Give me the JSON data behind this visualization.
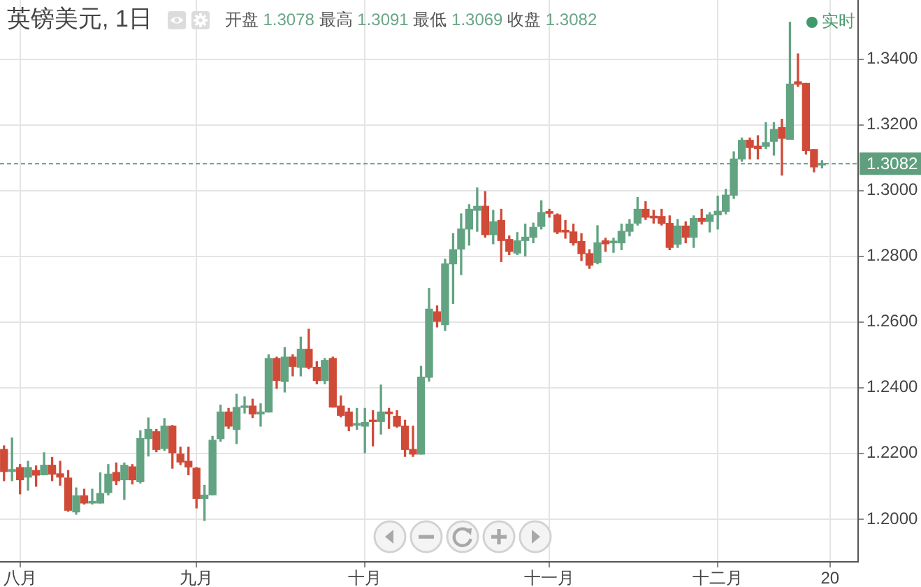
{
  "chart_data": {
    "type": "candlestick",
    "title": "英镑美元, 1日",
    "subtitle": "开盘 1.3078 最高 1.3091 最低 1.3069 收盘 1.3082",
    "annotations": [
      "实时"
    ],
    "categories": [
      null,
      null,
      "八月",
      null,
      null,
      null,
      null,
      null,
      null,
      null,
      null,
      null,
      null,
      null,
      null,
      null,
      null,
      null,
      null,
      null,
      null,
      null,
      null,
      null,
      "九月",
      null,
      null,
      null,
      null,
      null,
      null,
      null,
      null,
      null,
      null,
      null,
      null,
      null,
      null,
      null,
      null,
      null,
      null,
      null,
      null,
      "十月",
      null,
      null,
      null,
      null,
      null,
      null,
      null,
      null,
      null,
      null,
      null,
      null,
      null,
      null,
      null,
      null,
      null,
      null,
      null,
      null,
      null,
      null,
      "十一月",
      null,
      null,
      null,
      null,
      null,
      null,
      null,
      null,
      null,
      null,
      null,
      null,
      null,
      null,
      null,
      null,
      null,
      null,
      null,
      null,
      "十二月",
      null,
      null,
      null,
      null,
      null,
      null,
      null,
      null,
      null,
      null,
      null,
      null,
      null,
      "20"
    ],
    "ohlc": [
      [
        1.2212,
        1.2223,
        1.2117,
        1.2145
      ],
      [
        1.2145,
        1.2247,
        1.2117,
        1.2151
      ],
      [
        1.2157,
        1.2166,
        1.2077,
        1.212
      ],
      [
        1.2128,
        1.2176,
        1.2088,
        1.2157
      ],
      [
        1.2148,
        1.2162,
        1.21,
        1.2134
      ],
      [
        1.2135,
        1.2202,
        1.2135,
        1.2164
      ],
      [
        1.2164,
        1.2188,
        1.2117,
        1.2137
      ],
      [
        1.2138,
        1.2176,
        1.2103,
        1.2128
      ],
      [
        1.2125,
        1.2148,
        1.2024,
        1.2027
      ],
      [
        1.2022,
        1.2095,
        1.2015,
        1.2071
      ],
      [
        1.2071,
        1.2091,
        1.2046,
        1.2049
      ],
      [
        1.2049,
        1.2091,
        1.2046,
        1.2054
      ],
      [
        1.2049,
        1.2141,
        1.2049,
        1.2078
      ],
      [
        1.2081,
        1.2166,
        1.2074,
        1.2137
      ],
      [
        1.2142,
        1.2171,
        1.2105,
        1.2117
      ],
      [
        1.212,
        1.2171,
        1.206,
        1.2164
      ],
      [
        1.2159,
        1.2166,
        1.2107,
        1.212
      ],
      [
        1.2114,
        1.2269,
        1.211,
        1.2245
      ],
      [
        1.2245,
        1.2308,
        1.2192,
        1.2273
      ],
      [
        1.2266,
        1.2273,
        1.2205,
        1.2212
      ],
      [
        1.2215,
        1.2306,
        1.2209,
        1.2283
      ],
      [
        1.2283,
        1.2285,
        1.2155,
        1.2202
      ],
      [
        1.2198,
        1.2219,
        1.2166,
        1.2174
      ],
      [
        1.2176,
        1.2219,
        1.2135,
        1.2159
      ],
      [
        1.2155,
        1.2157,
        1.2034,
        1.2063
      ],
      [
        1.2063,
        1.2103,
        1.1996,
        1.2073
      ],
      [
        1.2074,
        1.2252,
        1.2074,
        1.224
      ],
      [
        1.2245,
        1.2347,
        1.2237,
        1.2326
      ],
      [
        1.2326,
        1.2337,
        1.2276,
        1.2283
      ],
      [
        1.2273,
        1.238,
        1.223,
        1.234
      ],
      [
        1.234,
        1.2372,
        1.2323,
        1.2344
      ],
      [
        1.2344,
        1.2365,
        1.2309,
        1.232
      ],
      [
        1.232,
        1.2351,
        1.2283,
        1.2326
      ],
      [
        1.2326,
        1.25,
        1.2326,
        1.2489
      ],
      [
        1.2489,
        1.2493,
        1.2398,
        1.2422
      ],
      [
        1.2419,
        1.2522,
        1.2387,
        1.2493
      ],
      [
        1.2493,
        1.25,
        1.2436,
        1.2465
      ],
      [
        1.2462,
        1.2554,
        1.2436,
        1.2517
      ],
      [
        1.2517,
        1.2578,
        1.2458,
        1.2462
      ],
      [
        1.2462,
        1.2479,
        1.2412,
        1.2422
      ],
      [
        1.2422,
        1.2489,
        1.2412,
        1.2483
      ],
      [
        1.2489,
        1.2493,
        1.2341,
        1.2341
      ],
      [
        1.2344,
        1.2375,
        1.2311,
        1.2316
      ],
      [
        1.2326,
        1.2337,
        1.2269,
        1.2283
      ],
      [
        1.2286,
        1.2337,
        1.2273,
        1.2291
      ],
      [
        1.2283,
        1.2337,
        1.2202,
        1.2294
      ],
      [
        1.2301,
        1.233,
        1.2223,
        1.2297
      ],
      [
        1.2297,
        1.2408,
        1.2259,
        1.2326
      ],
      [
        1.2326,
        1.2337,
        1.2276,
        1.2321
      ],
      [
        1.2313,
        1.233,
        1.228,
        1.2283
      ],
      [
        1.2283,
        1.2301,
        1.2191,
        1.2212
      ],
      [
        1.2212,
        1.2283,
        1.2191,
        1.2198
      ],
      [
        1.2198,
        1.2465,
        1.2198,
        1.2432
      ],
      [
        1.2432,
        1.2702,
        1.242,
        1.2639
      ],
      [
        1.2631,
        1.2649,
        1.2585,
        1.2602
      ],
      [
        1.2592,
        1.2791,
        1.2574,
        1.2777
      ],
      [
        1.2777,
        1.2869,
        1.2656,
        1.282
      ],
      [
        1.2822,
        1.2929,
        1.2744,
        1.2883
      ],
      [
        1.2883,
        1.2957,
        1.2834,
        1.2943
      ],
      [
        1.294,
        1.3008,
        1.2876,
        1.2952
      ],
      [
        1.2952,
        1.2997,
        1.2858,
        1.2866
      ],
      [
        1.2866,
        1.294,
        1.2838,
        1.2905
      ],
      [
        1.2909,
        1.2943,
        1.2784,
        1.2848
      ],
      [
        1.2851,
        1.2862,
        1.2805,
        1.2815
      ],
      [
        1.281,
        1.2872,
        1.2805,
        1.2847
      ],
      [
        1.2848,
        1.2898,
        1.2801,
        1.2858
      ],
      [
        1.2858,
        1.2901,
        1.2841,
        1.2888
      ],
      [
        1.2891,
        1.2969,
        1.2883,
        1.2933
      ],
      [
        1.2936,
        1.2943,
        1.2919,
        1.2931
      ],
      [
        1.2926,
        1.2929,
        1.2869,
        1.2874
      ],
      [
        1.2879,
        1.2909,
        1.2855,
        1.2874
      ],
      [
        1.2874,
        1.2898,
        1.2834,
        1.2841
      ],
      [
        1.2845,
        1.2869,
        1.2787,
        1.2808
      ],
      [
        1.2808,
        1.282,
        1.2763,
        1.2773
      ],
      [
        1.2781,
        1.2893,
        1.2777,
        1.2841
      ],
      [
        1.2847,
        1.2855,
        1.2815,
        1.2838
      ],
      [
        1.2841,
        1.2855,
        1.2812,
        1.2846
      ],
      [
        1.2841,
        1.2898,
        1.282,
        1.2876
      ],
      [
        1.2876,
        1.2912,
        1.2862,
        1.2898
      ],
      [
        1.2901,
        1.2979,
        1.2895,
        1.2943
      ],
      [
        1.2943,
        1.2966,
        1.2912,
        1.2919
      ],
      [
        1.2922,
        1.294,
        1.2901,
        1.2917
      ],
      [
        1.2921,
        1.2943,
        1.2895,
        1.29
      ],
      [
        1.29,
        1.2923,
        1.282,
        1.2827
      ],
      [
        1.2837,
        1.2912,
        1.2827,
        1.2892
      ],
      [
        1.2892,
        1.2905,
        1.2841,
        1.2858
      ],
      [
        1.2858,
        1.2923,
        1.2827,
        1.2915
      ],
      [
        1.2915,
        1.2943,
        1.2898,
        1.2906
      ],
      [
        1.2906,
        1.2933,
        1.2874,
        1.2926
      ],
      [
        1.2926,
        1.2983,
        1.2883,
        1.2937
      ],
      [
        1.2937,
        1.3004,
        1.2929,
        1.2986
      ],
      [
        1.2986,
        1.3118,
        1.2976,
        1.3096
      ],
      [
        1.3096,
        1.316,
        1.3089,
        1.3153
      ],
      [
        1.3153,
        1.316,
        1.3096,
        1.3131
      ],
      [
        1.3135,
        1.3167,
        1.3096,
        1.3128
      ],
      [
        1.3135,
        1.3207,
        1.3128,
        1.3146
      ],
      [
        1.315,
        1.3207,
        1.3108,
        1.3186
      ],
      [
        1.3192,
        1.3217,
        1.3047,
        1.3159
      ],
      [
        1.3156,
        1.3512,
        1.3156,
        1.3324
      ],
      [
        1.3331,
        1.3416,
        1.3317,
        1.3324
      ],
      [
        1.3326,
        1.3326,
        1.3111,
        1.3122
      ],
      [
        1.3125,
        1.3125,
        1.3057,
        1.3072
      ],
      [
        1.3078,
        1.3091,
        1.3069,
        1.3082
      ],
      null
    ],
    "colors": [
      "#d04a38",
      "#62a382",
      "#d04a38",
      "#62a382",
      "#d04a38",
      "#62a382",
      "#d04a38",
      "#d04a38",
      "#d04a38",
      "#62a382",
      "#d04a38",
      "#62a382",
      "#62a382",
      "#62a382",
      "#d04a38",
      "#62a382",
      "#d04a38",
      "#62a382",
      "#62a382",
      "#d04a38",
      "#62a382",
      "#d04a38",
      "#d04a38",
      "#d04a38",
      "#d04a38",
      "#62a382",
      "#62a382",
      "#62a382",
      "#d04a38",
      "#62a382",
      "#62a382",
      "#d04a38",
      "#62a382",
      "#62a382",
      "#d04a38",
      "#62a382",
      "#d04a38",
      "#62a382",
      "#d04a38",
      "#d04a38",
      "#62a382",
      "#d04a38",
      "#d04a38",
      "#d04a38",
      "#62a382",
      "#62a382",
      "#d04a38",
      "#62a382",
      "#d04a38",
      "#d04a38",
      "#d04a38",
      "#d04a38",
      "#62a382",
      "#62a382",
      "#d04a38",
      "#62a382",
      "#62a382",
      "#62a382",
      "#62a382",
      "#62a382",
      "#d04a38",
      "#62a382",
      "#d04a38",
      "#d04a38",
      "#62a382",
      "#62a382",
      "#62a382",
      "#62a382",
      "#d04a38",
      "#d04a38",
      "#d04a38",
      "#d04a38",
      "#d04a38",
      "#d04a38",
      "#62a382",
      "#d04a38",
      "#62a382",
      "#62a382",
      "#62a382",
      "#62a382",
      "#d04a38",
      "#d04a38",
      "#d04a38",
      "#d04a38",
      "#62a382",
      "#d04a38",
      "#62a382",
      "#d04a38",
      "#62a382",
      "#62a382",
      "#62a382",
      "#62a382",
      "#62a382",
      "#d04a38",
      "#d04a38",
      "#62a382",
      "#62a382",
      "#d04a38",
      "#62a382",
      "#d04a38",
      "#d04a38",
      "#d04a38",
      "#62a382",
      null
    ],
    "ylim": [
      1.187,
      1.358
    ],
    "yticks": [
      {
        "value": 1.2,
        "label": "1.2000"
      },
      {
        "value": 1.22,
        "label": "1.2200"
      },
      {
        "value": 1.24,
        "label": "1.2400"
      },
      {
        "value": 1.26,
        "label": "1.2600"
      },
      {
        "value": 1.28,
        "label": "1.2800"
      },
      {
        "value": 1.3,
        "label": "1.3000"
      },
      {
        "value": 1.32,
        "label": "1.3200"
      },
      {
        "value": 1.34,
        "label": "1.3400"
      }
    ],
    "grid": true,
    "ref_lines": [
      {
        "axis": "y",
        "value": 1.3082,
        "label": "1.3082",
        "color": "#5f9f7e",
        "line_style": "dashed"
      }
    ]
  }
}
